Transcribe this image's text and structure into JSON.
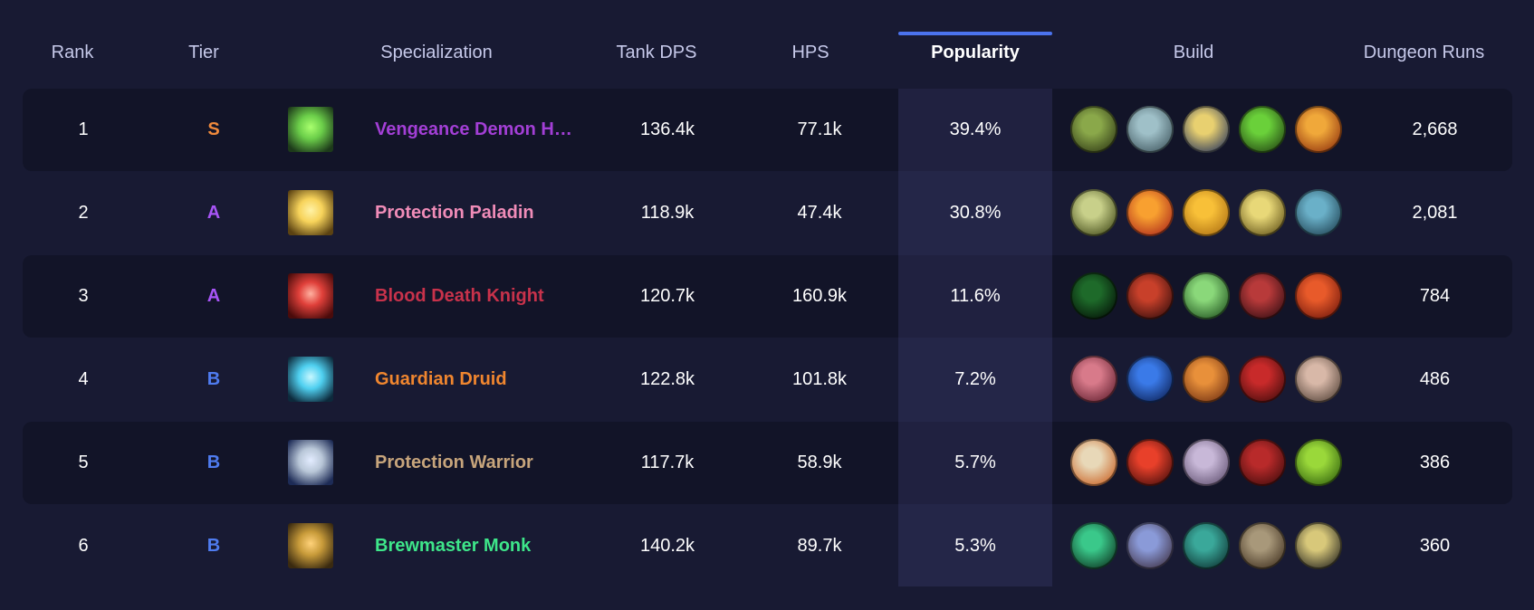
{
  "header": {
    "rank": "Rank",
    "tier": "Tier",
    "specialization": "Specialization",
    "tank_dps": "Tank DPS",
    "hps": "HPS",
    "popularity": "Popularity",
    "build": "Build",
    "dungeon_runs": "Dungeon Runs"
  },
  "tier_colors": {
    "S": "#f08a3c",
    "A": "#a855f7",
    "B": "#4f7cf0"
  },
  "rows": [
    {
      "rank": "1",
      "tier": "S",
      "spec": "Vengeance Demon H…",
      "spec_color": "#a33fd6",
      "spec_icon": "vengeance-demon-hunter-icon",
      "tank_dps": "136.4k",
      "hps": "77.1k",
      "popularity": "39.4%",
      "dungeon_runs": "2,668",
      "build": [
        "fel-skull-talent-icon",
        "ghost-skull-talent-icon",
        "sigil-flash-talent-icon",
        "fel-devastation-talent-icon",
        "flame-talent-icon"
      ]
    },
    {
      "rank": "2",
      "tier": "A",
      "spec": "Protection Paladin",
      "spec_color": "#f08cb8",
      "spec_icon": "protection-paladin-icon",
      "tank_dps": "118.9k",
      "hps": "47.4k",
      "popularity": "30.8%",
      "dungeon_runs": "2,081",
      "build": [
        "lion-talent-icon",
        "holy-fire-talent-icon",
        "golden-light-talent-icon",
        "golden-helm-talent-icon",
        "blue-gear-talent-icon"
      ]
    },
    {
      "rank": "3",
      "tier": "A",
      "spec": "Blood Death Knight",
      "spec_color": "#c8324b",
      "spec_icon": "blood-death-knight-icon",
      "tank_dps": "120.7k",
      "hps": "160.9k",
      "popularity": "11.6%",
      "dungeon_runs": "784",
      "build": [
        "green-void-talent-icon",
        "red-skull-talent-icon",
        "green-skull-talent-icon",
        "blood-claw-talent-icon",
        "blood-heart-talent-icon"
      ]
    },
    {
      "rank": "4",
      "tier": "B",
      "spec": "Guardian Druid",
      "spec_color": "#f0862f",
      "spec_icon": "guardian-druid-icon",
      "tank_dps": "122.8k",
      "hps": "101.8k",
      "popularity": "7.2%",
      "dungeon_runs": "486",
      "build": [
        "mangle-talent-icon",
        "blue-swirl-talent-icon",
        "ironfur-talent-icon",
        "bear-talent-icon",
        "claw-talent-icon"
      ]
    },
    {
      "rank": "5",
      "tier": "B",
      "spec": "Protection Warrior",
      "spec_color": "#c7a57c",
      "spec_icon": "protection-warrior-icon",
      "tank_dps": "117.7k",
      "hps": "58.9k",
      "popularity": "5.7%",
      "dungeon_runs": "386",
      "build": [
        "shield-talent-icon",
        "red-slash-talent-icon",
        "roar-talent-icon",
        "demon-talent-icon",
        "orc-talent-icon"
      ]
    },
    {
      "rank": "6",
      "tier": "B",
      "spec": "Brewmaster Monk",
      "spec_color": "#3ee68a",
      "spec_icon": "brewmaster-monk-icon",
      "tank_dps": "140.2k",
      "hps": "89.7k",
      "popularity": "5.3%",
      "dungeon_runs": "360",
      "build": [
        "jade-vortex-talent-icon",
        "staff-strike-talent-icon",
        "jade-serpent-talent-icon",
        "keg-talent-icon",
        "brawler-talent-icon"
      ]
    }
  ]
}
